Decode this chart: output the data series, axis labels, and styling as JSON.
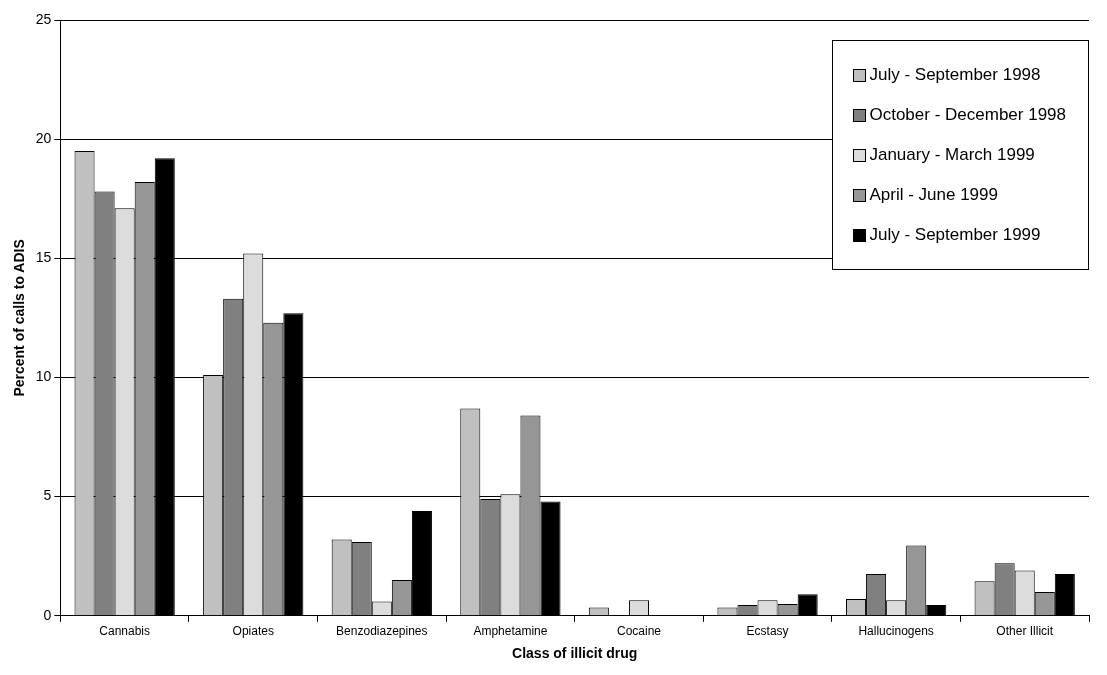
{
  "chart_data": {
    "type": "bar",
    "xlabel": "Class of illicit drug",
    "ylabel": "Percent of calls to ADIS",
    "categories": [
      "Cannabis",
      "Opiates",
      "Benzodiazepines",
      "Amphetamine",
      "Cocaine",
      "Ecstasy",
      "Hallucinogens",
      "Other Illicit"
    ],
    "series": [
      {
        "name": "July - September 1998",
        "color": "#c0c0c0",
        "values": [
          19.5,
          10.1,
          3.2,
          8.7,
          0.35,
          0.35,
          0.7,
          1.45
        ]
      },
      {
        "name": "October - December 1998",
        "color": "#808080",
        "values": [
          17.8,
          13.3,
          3.1,
          4.9,
          null,
          0.45,
          1.75,
          2.2
        ]
      },
      {
        "name": "January - March 1999",
        "color": "#dcdcdc",
        "values": [
          17.1,
          15.2,
          0.6,
          5.1,
          0.65,
          0.65,
          0.65,
          1.9
        ]
      },
      {
        "name": "April - June 1999",
        "color": "#969696",
        "values": [
          18.2,
          12.3,
          1.5,
          8.4,
          null,
          0.5,
          2.95,
          1.0
        ]
      },
      {
        "name": "July - September 1999",
        "color": "#000000",
        "values": [
          19.2,
          12.7,
          4.4,
          4.8,
          null,
          0.9,
          0.45,
          1.75
        ]
      }
    ],
    "ylim": [
      0,
      25
    ],
    "yticks": [
      0,
      5,
      10,
      15,
      20,
      25
    ],
    "grid": "y",
    "legend": "top right"
  }
}
